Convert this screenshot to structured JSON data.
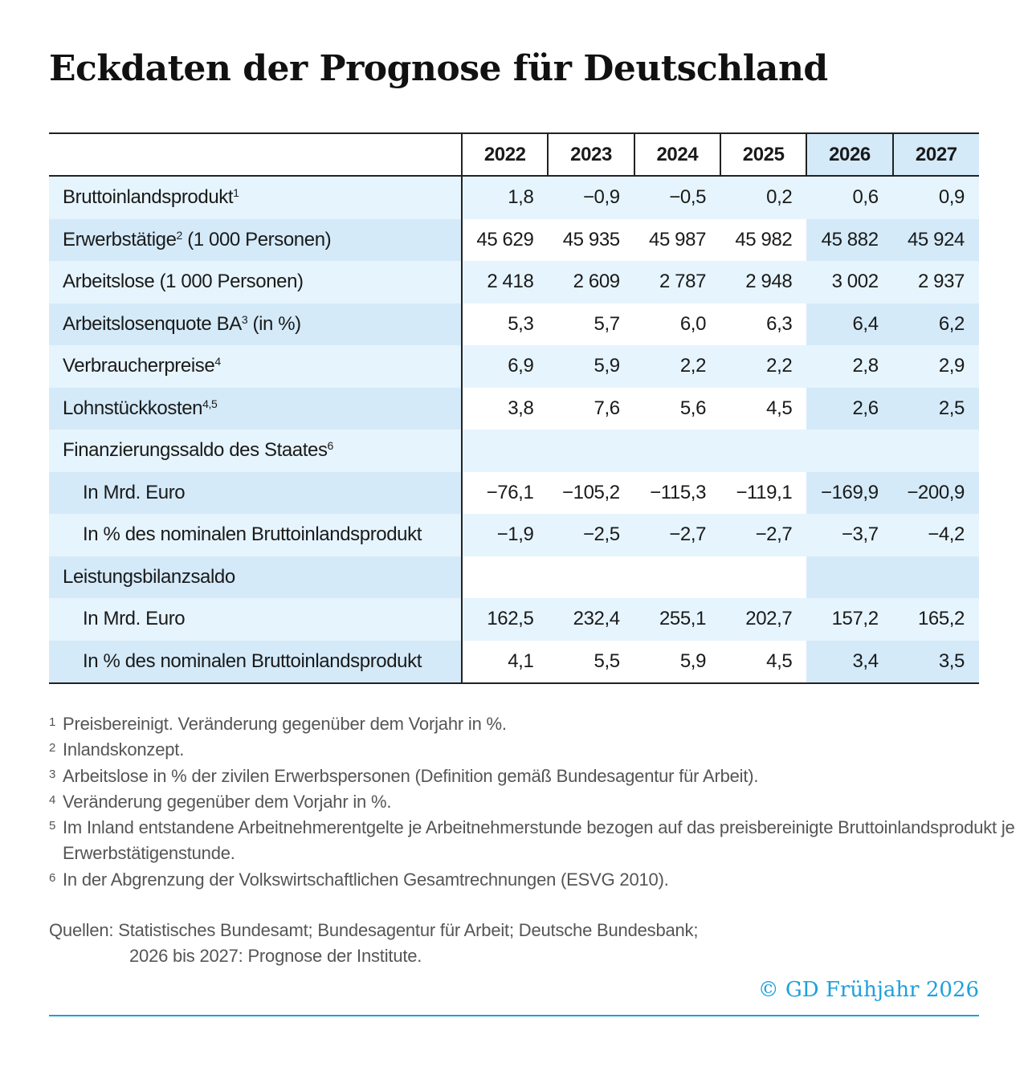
{
  "title": "Eckdaten der Prognose für Deutschland",
  "table": {
    "years": [
      "2022",
      "2023",
      "2024",
      "2025",
      "2026",
      "2027"
    ],
    "forecast_years": [
      "2026",
      "2027"
    ],
    "rows": [
      {
        "label": "Bruttoinlandsprodukt",
        "sup": "1",
        "sub": false,
        "values": [
          "1,8",
          "−0,9",
          "−0,5",
          "0,2",
          "0,6",
          "0,9"
        ]
      },
      {
        "label": "Erwerbstätige",
        "sup": "2",
        "suffix": " (1 000 Personen)",
        "sub": false,
        "values": [
          "45 629",
          "45 935",
          "45 987",
          "45 982",
          "45 882",
          "45 924"
        ]
      },
      {
        "label": "Arbeitslose (1 000 Personen)",
        "sup": "",
        "sub": false,
        "values": [
          "2 418",
          "2 609",
          "2 787",
          "2 948",
          "3 002",
          "2 937"
        ]
      },
      {
        "label": "Arbeitslosenquote BA",
        "sup": "3",
        "suffix": " (in %)",
        "sub": false,
        "values": [
          "5,3",
          "5,7",
          "6,0",
          "6,3",
          "6,4",
          "6,2"
        ]
      },
      {
        "label": "Verbraucherpreise",
        "sup": "4",
        "sub": false,
        "values": [
          "6,9",
          "5,9",
          "2,2",
          "2,2",
          "2,8",
          "2,9"
        ]
      },
      {
        "label": "Lohnstückkosten",
        "sup": "4,5",
        "sub": false,
        "values": [
          "3,8",
          "7,6",
          "5,6",
          "4,5",
          "2,6",
          "2,5"
        ]
      },
      {
        "label": "Finanzierungssaldo des Staates",
        "sup": "6",
        "sub": false,
        "values": [
          "",
          "",
          "",
          "",
          "",
          ""
        ]
      },
      {
        "label": "In Mrd. Euro",
        "sup": "",
        "sub": true,
        "values": [
          "−76,1",
          "−105,2",
          "−115,3",
          "−119,1",
          "−169,9",
          "−200,9"
        ]
      },
      {
        "label": "In % des nominalen Bruttoinlandsprodukt",
        "sup": "",
        "sub": true,
        "values": [
          "−1,9",
          "−2,5",
          "−2,7",
          "−2,7",
          "−3,7",
          "−4,2"
        ]
      },
      {
        "label": "Leistungsbilanzsaldo",
        "sup": "",
        "sub": false,
        "values": [
          "",
          "",
          "",
          "",
          "",
          ""
        ]
      },
      {
        "label": "In Mrd. Euro",
        "sup": "",
        "sub": true,
        "values": [
          "162,5",
          "232,4",
          "255,1",
          "202,7",
          "157,2",
          "165,2"
        ]
      },
      {
        "label": "In % des nominalen Bruttoinlandsprodukt",
        "sup": "",
        "sub": true,
        "values": [
          "4,1",
          "5,5",
          "5,9",
          "4,5",
          "3,4",
          "3,5"
        ]
      }
    ]
  },
  "footnotes": [
    {
      "n": "1",
      "text": "Preisbereinigt. Veränderung gegenüber dem Vorjahr in %."
    },
    {
      "n": "2",
      "text": "Inlandskonzept."
    },
    {
      "n": "3",
      "text": "Arbeitslose in % der zivilen Erwerbspersonen (Definition gemäß Bundesagentur für Arbeit)."
    },
    {
      "n": "4",
      "text": "Veränderung gegenüber dem Vorjahr in %."
    },
    {
      "n": "5",
      "text": "Im Inland entstandene Arbeitnehmerentgelte je Arbeitnehmerstunde bezogen auf das preisbereinigte Bruttoinlandsprodukt je Erwerbstätigenstunde."
    },
    {
      "n": "6",
      "text": "In der Abgrenzung der Volkswirtschaftlichen Gesamtrechnungen (ESVG 2010)."
    }
  ],
  "sources": {
    "line1": "Quellen: Statistisches Bundesamt; Bundesagentur für Arbeit; Deutsche Bundesbank;",
    "line2": "2026 bis 2027: Prognose der Institute."
  },
  "copyright": "© GD Frühjahr 2026",
  "colors": {
    "accent": "#1ea0dc",
    "row_light": "#e6f4fd",
    "row_mid": "#d4eaf9"
  }
}
